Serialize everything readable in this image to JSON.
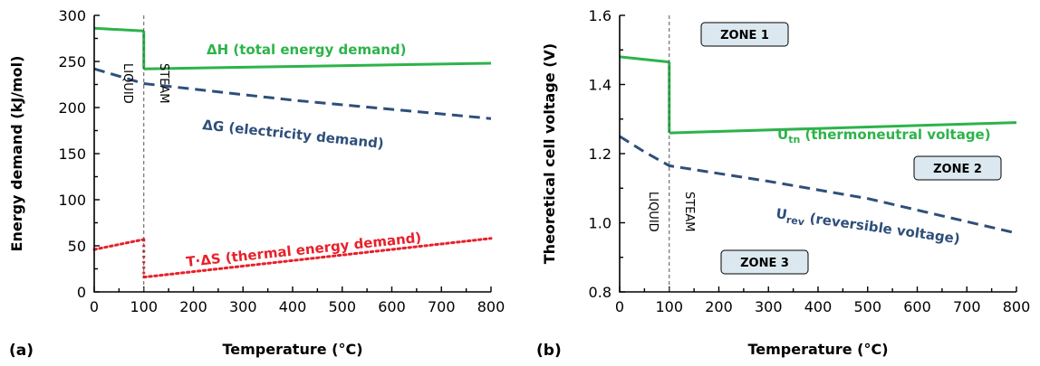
{
  "colors": {
    "green": "#2db34a",
    "blue": "#2e4f7a",
    "red": "#e8202a"
  },
  "chart_data": [
    {
      "type": "line",
      "panel_label": "(a)",
      "xlabel": "Temperature (°C)",
      "ylabel": "Energy demand (kJ/mol)",
      "xlim": [
        0,
        800
      ],
      "ylim": [
        0,
        300
      ],
      "xticks": [
        "0",
        "100",
        "200",
        "300",
        "400",
        "500",
        "600",
        "700",
        "800"
      ],
      "yticks": [
        "0",
        "50",
        "100",
        "150",
        "200",
        "250",
        "300"
      ],
      "phase_labels": {
        "liquid": "LIQUID",
        "steam": "STEAM"
      },
      "boundary_x": 100,
      "series": [
        {
          "label": "ΔH (total energy demand)",
          "color": "#2db34a",
          "style": "solid",
          "segments": [
            [
              [
                0,
                286
              ],
              [
                100,
                283
              ]
            ],
            [
              [
                100,
                242
              ],
              [
                800,
                248
              ]
            ]
          ]
        },
        {
          "label": "ΔG (electricity demand)",
          "color": "#2e4f7a",
          "style": "dashed",
          "segments": [
            [
              [
                0,
                242
              ],
              [
                50,
                234
              ],
              [
                100,
                226
              ],
              [
                200,
                220
              ],
              [
                400,
                208
              ],
              [
                600,
                198
              ],
              [
                800,
                188
              ]
            ]
          ]
        },
        {
          "label": "T·ΔS (thermal energy demand)",
          "color": "#e8202a",
          "style": "dotted",
          "segments": [
            [
              [
                0,
                46
              ],
              [
                100,
                57
              ]
            ],
            [
              [
                100,
                16
              ],
              [
                800,
                58
              ]
            ]
          ]
        }
      ]
    },
    {
      "type": "line",
      "panel_label": "(b)",
      "xlabel": "Temperature (°C)",
      "ylabel": "Theoretical cell voltage (V)",
      "xlim": [
        0,
        800
      ],
      "ylim": [
        0.8,
        1.6
      ],
      "xticks": [
        "0",
        "100",
        "200",
        "300",
        "400",
        "500",
        "600",
        "700",
        "800"
      ],
      "yticks": [
        "0.8",
        "1.0",
        "1.2",
        "1.4",
        "1.6"
      ],
      "phase_labels": {
        "liquid": "LIQUID",
        "steam": "STEAM"
      },
      "boundary_x": 100,
      "zones": [
        "ZONE 1",
        "ZONE 2",
        "ZONE 3"
      ],
      "series": [
        {
          "label_main": "U",
          "label_sub": "tn",
          "label_rest": " (thermoneutral voltage)",
          "color": "#2db34a",
          "style": "solid",
          "segments": [
            [
              [
                0,
                1.48
              ],
              [
                100,
                1.465
              ]
            ],
            [
              [
                100,
                1.26
              ],
              [
                800,
                1.29
              ]
            ]
          ]
        },
        {
          "label_main": "U",
          "label_sub": "rev",
          "label_rest": " (reversible voltage)",
          "color": "#2e4f7a",
          "style": "dashed",
          "segments": [
            [
              [
                0,
                1.25
              ],
              [
                50,
                1.205
              ],
              [
                100,
                1.165
              ],
              [
                300,
                1.12
              ],
              [
                500,
                1.07
              ],
              [
                800,
                0.97
              ]
            ]
          ]
        }
      ]
    }
  ]
}
